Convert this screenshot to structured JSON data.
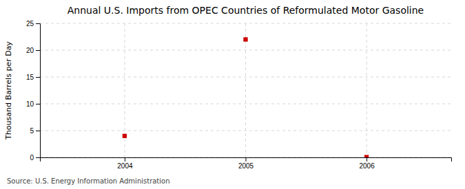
{
  "chart_data": {
    "type": "scatter",
    "title": "Annual U.S. Imports from OPEC Countries of Reformulated Motor Gasoline",
    "ylabel": "Thousand Barrels per Day",
    "annotations": [
      "Source: U.S. Energy Information Administration"
    ],
    "x": [
      2004,
      2005,
      2006
    ],
    "values": [
      4.0,
      22.0,
      0.05
    ],
    "color": "#cc0000",
    "marker": "square",
    "xlim": [
      2003.3,
      2006.7
    ],
    "ylim": [
      0,
      25
    ],
    "xticks": [
      2004,
      2005,
      2006
    ],
    "yticks": [
      0,
      5,
      10,
      15,
      20,
      25
    ],
    "grid": true
  }
}
